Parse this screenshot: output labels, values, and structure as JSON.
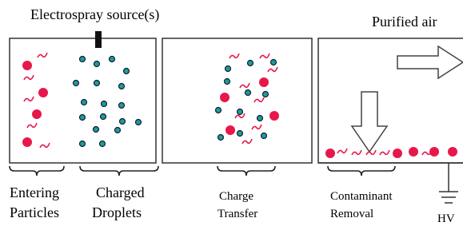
{
  "header": {
    "source": "Electrospray source(s)",
    "outlet": "Purified air"
  },
  "stages": [
    {
      "lines": [
        "Entering",
        "Particles"
      ]
    },
    {
      "lines": [
        "Charged",
        "Droplets"
      ]
    },
    {
      "lines": [
        "Charge",
        "Transfer"
      ]
    },
    {
      "lines": [
        "Contaminant",
        "Removal"
      ]
    }
  ],
  "ground": "HV"
}
